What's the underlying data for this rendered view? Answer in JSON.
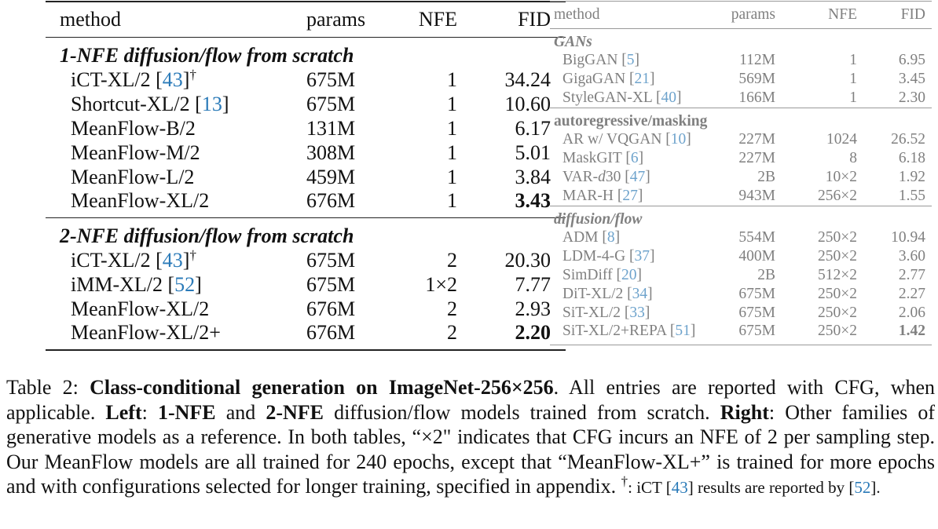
{
  "left_table": {
    "header": [
      "method",
      "params",
      "NFE",
      "FID"
    ],
    "sections": [
      {
        "title": "1-NFE diffusion/flow from scratch",
        "rows": [
          {
            "method": [
              {
                "t": "iCT-XL/2 ["
              },
              {
                "t": "43",
                "s": "cite"
              },
              {
                "t": "]"
              },
              {
                "t": "†",
                "s": "sup"
              }
            ],
            "params": "675M",
            "nfe": "1",
            "fid": "34.24"
          },
          {
            "method": [
              {
                "t": "Shortcut-XL/2 ["
              },
              {
                "t": "13",
                "s": "cite"
              },
              {
                "t": "]"
              }
            ],
            "params": "675M",
            "nfe": "1",
            "fid": "10.60"
          },
          {
            "method": [
              {
                "t": "MeanFlow-B/2"
              }
            ],
            "params": "131M",
            "nfe": "1",
            "fid": "6.17"
          },
          {
            "method": [
              {
                "t": "MeanFlow-M/2"
              }
            ],
            "params": "308M",
            "nfe": "1",
            "fid": "5.01"
          },
          {
            "method": [
              {
                "t": "MeanFlow-L/2"
              }
            ],
            "params": "459M",
            "nfe": "1",
            "fid": "3.84"
          },
          {
            "method": [
              {
                "t": "MeanFlow-XL/2"
              }
            ],
            "params": "676M",
            "nfe": "1",
            "fid": "3.43",
            "fid_bold": true
          }
        ]
      },
      {
        "title": "2-NFE diffusion/flow from scratch",
        "rows": [
          {
            "method": [
              {
                "t": "iCT-XL/2 ["
              },
              {
                "t": "43",
                "s": "cite"
              },
              {
                "t": "]"
              },
              {
                "t": "†",
                "s": "sup"
              }
            ],
            "params": "675M",
            "nfe": "2",
            "fid": "20.30"
          },
          {
            "method": [
              {
                "t": "iMM-XL/2 ["
              },
              {
                "t": "52",
                "s": "cite"
              },
              {
                "t": "]"
              }
            ],
            "params": "675M",
            "nfe": "1×2",
            "fid": "7.77"
          },
          {
            "method": [
              {
                "t": "MeanFlow-XL/2"
              }
            ],
            "params": "676M",
            "nfe": "2",
            "fid": "2.93"
          },
          {
            "method": [
              {
                "t": "MeanFlow-XL/2+"
              }
            ],
            "params": "676M",
            "nfe": "2",
            "fid": "2.20",
            "fid_bold": true
          }
        ]
      }
    ]
  },
  "right_table": {
    "header": [
      "method",
      "params",
      "NFE",
      "FID"
    ],
    "sections": [
      {
        "title": "GANs",
        "title_italic": true,
        "rows": [
          {
            "method": [
              {
                "t": "BigGAN ["
              },
              {
                "t": "5",
                "s": "cite"
              },
              {
                "t": "]"
              }
            ],
            "params": "112M",
            "nfe": "1",
            "fid": "6.95"
          },
          {
            "method": [
              {
                "t": "GigaGAN ["
              },
              {
                "t": "21",
                "s": "cite"
              },
              {
                "t": "]"
              }
            ],
            "params": "569M",
            "nfe": "1",
            "fid": "3.45"
          },
          {
            "method": [
              {
                "t": "StyleGAN-XL ["
              },
              {
                "t": "40",
                "s": "cite"
              },
              {
                "t": "]"
              }
            ],
            "params": "166M",
            "nfe": "1",
            "fid": "2.30"
          }
        ]
      },
      {
        "title": "autoregressive/masking",
        "title_italic": false,
        "rows": [
          {
            "method": [
              {
                "t": "AR w/ VQGAN ["
              },
              {
                "t": "10",
                "s": "cite"
              },
              {
                "t": "]"
              }
            ],
            "params": "227M",
            "nfe": "1024",
            "fid": "26.52"
          },
          {
            "method": [
              {
                "t": "MaskGIT ["
              },
              {
                "t": "6",
                "s": "cite"
              },
              {
                "t": "]"
              }
            ],
            "params": "227M",
            "nfe": "8",
            "fid": "6.18"
          },
          {
            "method": [
              {
                "t": "VAR-"
              },
              {
                "t": "d",
                "s": "italic"
              },
              {
                "t": "30 ["
              },
              {
                "t": "47",
                "s": "cite"
              },
              {
                "t": "]"
              }
            ],
            "params": "2B",
            "nfe": "10×2",
            "fid": "1.92"
          },
          {
            "method": [
              {
                "t": "MAR-H ["
              },
              {
                "t": "27",
                "s": "cite"
              },
              {
                "t": "]"
              }
            ],
            "params": "943M",
            "nfe": "256×2",
            "fid": "1.55"
          }
        ]
      },
      {
        "title": "diffusion/flow",
        "title_italic": true,
        "rows": [
          {
            "method": [
              {
                "t": "ADM ["
              },
              {
                "t": "8",
                "s": "cite"
              },
              {
                "t": "]"
              }
            ],
            "params": "554M",
            "nfe": "250×2",
            "fid": "10.94"
          },
          {
            "method": [
              {
                "t": "LDM-4-G ["
              },
              {
                "t": "37",
                "s": "cite"
              },
              {
                "t": "]"
              }
            ],
            "params": "400M",
            "nfe": "250×2",
            "fid": "3.60"
          },
          {
            "method": [
              {
                "t": "SimDiff ["
              },
              {
                "t": "20",
                "s": "cite"
              },
              {
                "t": "]"
              }
            ],
            "params": "2B",
            "nfe": "512×2",
            "fid": "2.77"
          },
          {
            "method": [
              {
                "t": "DiT-XL/2 ["
              },
              {
                "t": "34",
                "s": "cite"
              },
              {
                "t": "]"
              }
            ],
            "params": "675M",
            "nfe": "250×2",
            "fid": "2.27"
          },
          {
            "method": [
              {
                "t": "SiT-XL/2 ["
              },
              {
                "t": "33",
                "s": "cite"
              },
              {
                "t": "]"
              }
            ],
            "params": "675M",
            "nfe": "250×2",
            "fid": "2.06"
          },
          {
            "method": [
              {
                "t": "SiT-XL/2+REPA ["
              },
              {
                "t": "51",
                "s": "cite"
              },
              {
                "t": "]"
              }
            ],
            "params": "675M",
            "nfe": "250×2",
            "fid": "1.42",
            "fid_bold": true
          }
        ]
      }
    ]
  },
  "caption": [
    {
      "t": "Table 2: "
    },
    {
      "t": "Class-conditional generation on ImageNet-256×256",
      "s": "bold"
    },
    {
      "t": ". All entries are reported with CFG, when applicable. "
    },
    {
      "t": "Left",
      "s": "bold"
    },
    {
      "t": ": "
    },
    {
      "t": "1-NFE",
      "s": "bold"
    },
    {
      "t": " and "
    },
    {
      "t": "2-NFE",
      "s": "bold"
    },
    {
      "t": " diffusion/flow models trained from scratch. "
    },
    {
      "t": "Right",
      "s": "bold"
    },
    {
      "t": ": Other families of generative models as a reference. In both tables, “×2\" indicates that CFG incurs an NFE of 2 per sampling step. Our MeanFlow models are all trained for 240 epochs, except that “MeanFlow-XL+” is trained for more epochs and with configurations selected for longer training, specified in appendix. "
    },
    {
      "t": "†",
      "s": "sup"
    },
    {
      "t": ": iCT [",
      "s": "small"
    },
    {
      "t": "43",
      "s": "small cite"
    },
    {
      "t": "] results are reported by [",
      "s": "small"
    },
    {
      "t": "52",
      "s": "small cite"
    },
    {
      "t": "].",
      "s": "small"
    }
  ]
}
